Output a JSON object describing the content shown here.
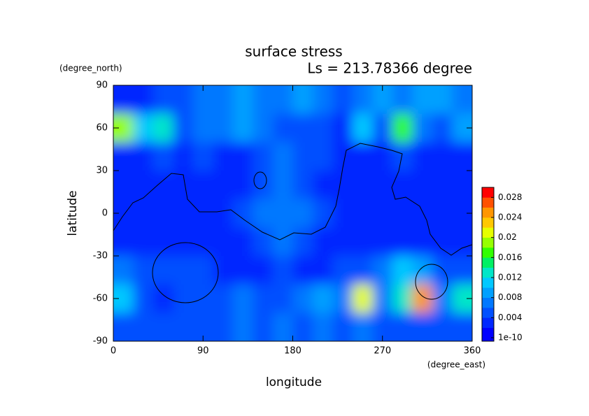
{
  "chart_data": {
    "type": "contourf",
    "title": "surface stress",
    "subtitle": "Ls = 213.78366 degree",
    "xlabel": "longitude",
    "xunit": "(degree_east)",
    "ylabel": "latitude",
    "yunit": "(degree_north)",
    "xlim": [
      0,
      360
    ],
    "xticks": [
      0,
      90,
      180,
      270,
      360
    ],
    "ylim": [
      -90,
      90
    ],
    "yticks": [
      -90,
      -60,
      -30,
      0,
      30,
      60,
      90
    ],
    "x": [
      10,
      30,
      50,
      70,
      90,
      110,
      130,
      150,
      170,
      190,
      210,
      230,
      250,
      270,
      290,
      310,
      330,
      350
    ],
    "y": [
      80,
      60,
      40,
      20,
      0,
      -20,
      -40,
      -60,
      -80
    ],
    "values": [
      [
        0.004,
        0.003,
        0.005,
        0.006,
        0.007,
        0.008,
        0.01,
        0.007,
        0.008,
        0.009,
        0.007,
        0.006,
        0.007,
        0.01,
        0.008,
        0.009,
        0.01,
        0.008
      ],
      [
        0.02,
        0.012,
        0.014,
        0.005,
        0.008,
        0.007,
        0.009,
        0.007,
        0.005,
        0.006,
        0.006,
        0.004,
        0.012,
        0.006,
        0.018,
        0.007,
        0.006,
        0.009
      ],
      [
        0.004,
        0.004,
        0.006,
        0.004,
        0.006,
        0.004,
        0.004,
        0.005,
        0.007,
        0.005,
        0.005,
        0.004,
        0.004,
        0.004,
        0.005,
        0.004,
        0.004,
        0.004
      ],
      [
        0.004,
        0.004,
        0.004,
        0.004,
        0.004,
        0.004,
        0.004,
        0.006,
        0.007,
        0.005,
        0.004,
        0.004,
        0.004,
        0.004,
        0.004,
        0.004,
        0.004,
        0.004
      ],
      [
        0.004,
        0.004,
        0.004,
        0.004,
        0.004,
        0.004,
        0.005,
        0.008,
        0.008,
        0.007,
        0.005,
        0.004,
        0.004,
        0.004,
        0.004,
        0.004,
        0.004,
        0.004
      ],
      [
        0.004,
        0.004,
        0.004,
        0.004,
        0.004,
        0.004,
        0.004,
        0.005,
        0.007,
        0.005,
        0.004,
        0.004,
        0.004,
        0.004,
        0.004,
        0.004,
        0.004,
        0.004
      ],
      [
        0.007,
        0.005,
        0.006,
        0.006,
        0.005,
        0.004,
        0.004,
        0.004,
        0.005,
        0.004,
        0.004,
        0.005,
        0.006,
        0.007,
        0.012,
        0.01,
        0.006,
        0.005
      ],
      [
        0.012,
        0.005,
        0.004,
        0.005,
        0.005,
        0.005,
        0.007,
        0.006,
        0.005,
        0.008,
        0.009,
        0.007,
        0.022,
        0.008,
        0.014,
        0.026,
        0.007,
        0.014
      ],
      [
        0.006,
        0.005,
        0.006,
        0.006,
        0.005,
        0.006,
        0.007,
        0.006,
        0.008,
        0.006,
        0.007,
        0.006,
        0.008,
        0.006,
        0.005,
        0.006,
        0.006,
        0.005
      ]
    ],
    "clim": [
      1e-10,
      0.03
    ],
    "cticks": [
      1e-10,
      0.004,
      0.008,
      0.012,
      0.016,
      0.02,
      0.024,
      0.028
    ],
    "colors": [
      "#0000ff",
      "#0028ff",
      "#0050ff",
      "#0078ff",
      "#00a0ff",
      "#00c8ff",
      "#00e6c8",
      "#00f064",
      "#32ff00",
      "#96ff00",
      "#e6ff00",
      "#ffc800",
      "#ff9600",
      "#ff5000",
      "#ff0000"
    ]
  }
}
